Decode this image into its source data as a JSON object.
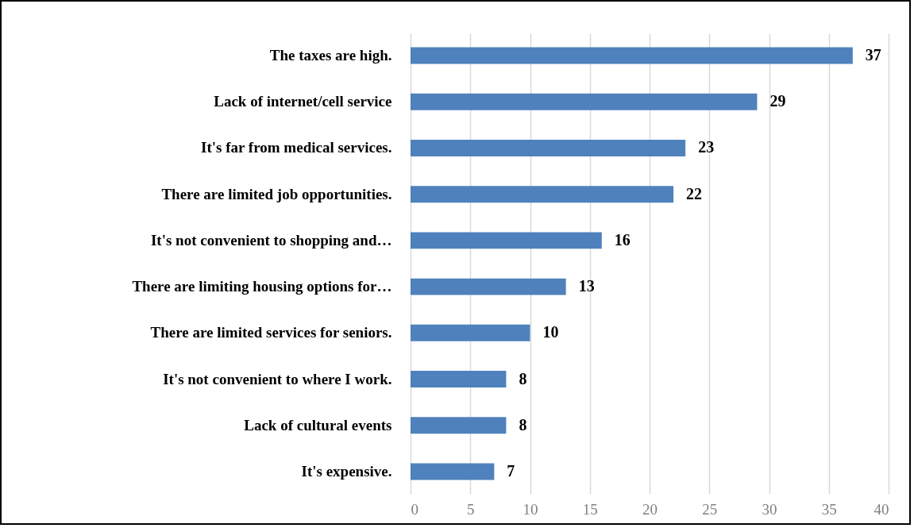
{
  "chart_data": {
    "type": "bar",
    "orientation": "horizontal",
    "categories": [
      "The taxes are high.",
      "Lack of internet/cell service",
      "It's far from medical services.",
      "There are limited job opportunities.",
      "It's not convenient to shopping and…",
      "There are limiting housing options for…",
      "There are limited services for seniors.",
      "It's not convenient to where I work.",
      "Lack of cultural events",
      "It's expensive."
    ],
    "values": [
      37,
      29,
      23,
      22,
      16,
      13,
      10,
      8,
      8,
      7
    ],
    "color": "#4f81bd",
    "xlim": [
      0,
      40
    ],
    "xticks": [
      0,
      5,
      10,
      15,
      20,
      25,
      30,
      35,
      40
    ],
    "grid": "x",
    "data_labels": true
  }
}
